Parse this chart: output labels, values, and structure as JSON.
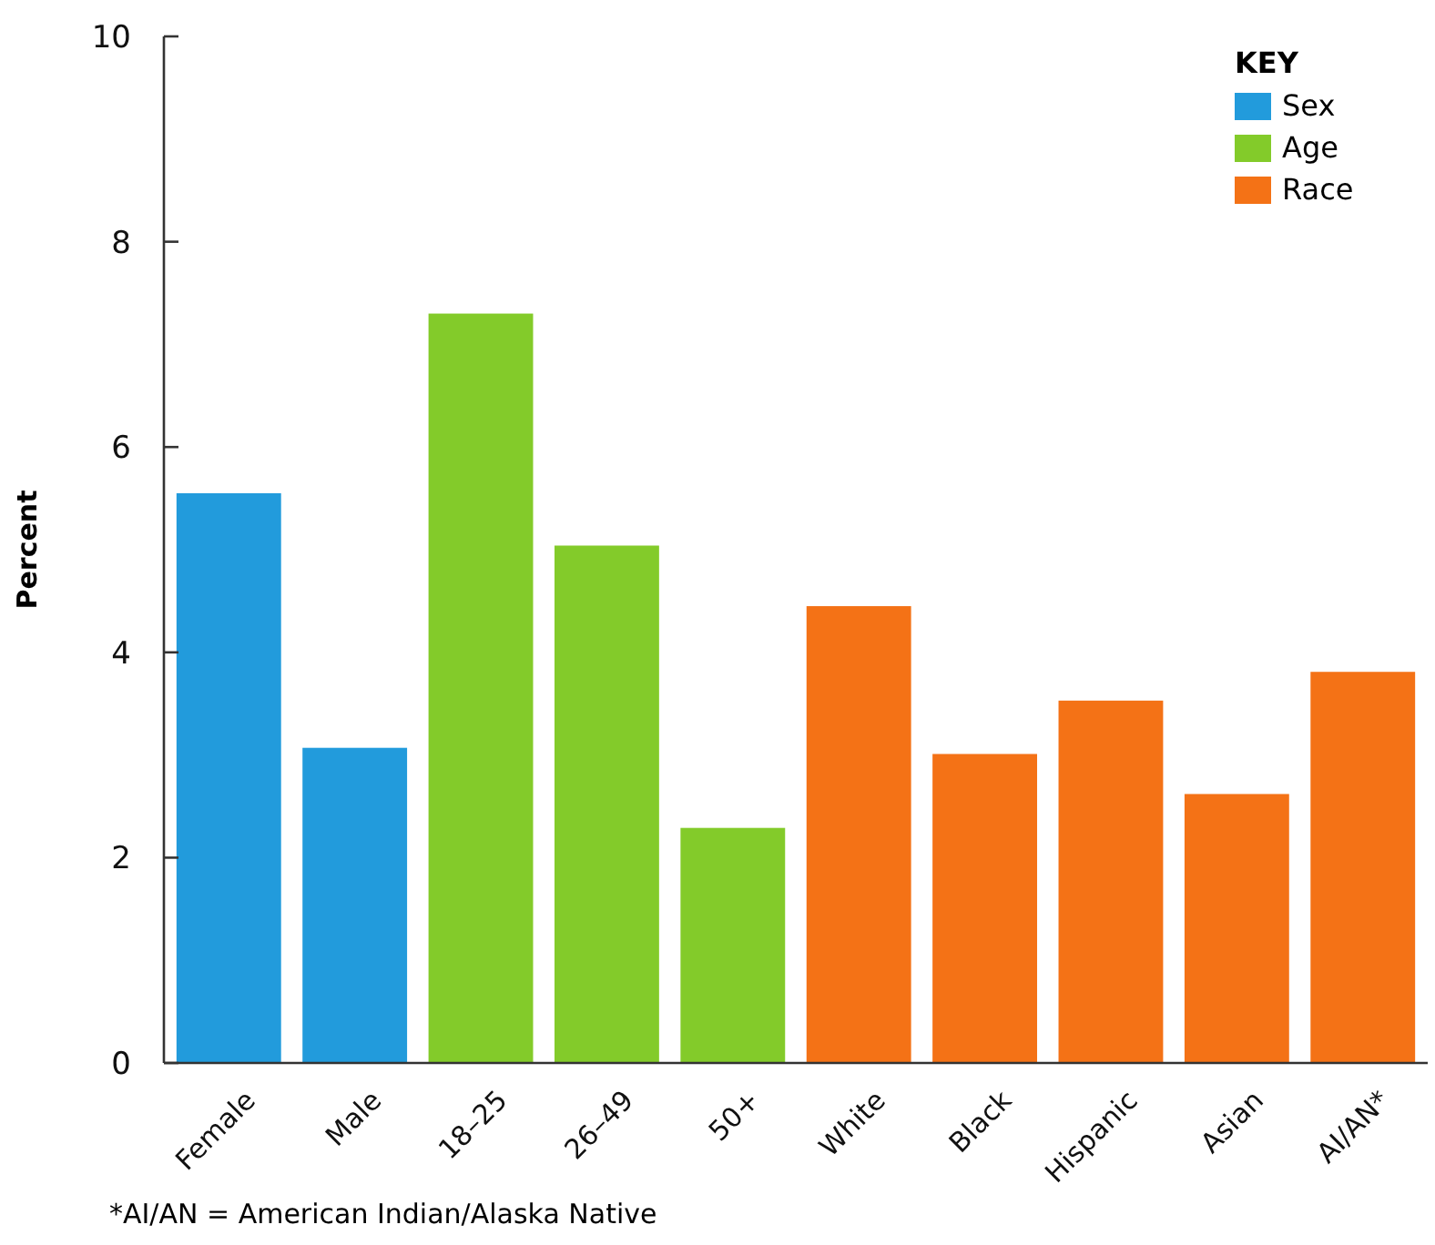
{
  "chart_data": {
    "type": "bar",
    "ylabel": "Percent",
    "categories": [
      "Female",
      "Male",
      "18–25",
      "26–49",
      "50+",
      "White",
      "Black",
      "Hispanic",
      "Asian",
      "AI/AN*"
    ],
    "series": [
      {
        "name": "Sex",
        "color": "#229bdc",
        "values": [
          5.55,
          3.07,
          null,
          null,
          null,
          null,
          null,
          null,
          null,
          null
        ]
      },
      {
        "name": "Age",
        "color": "#83cb2a",
        "values": [
          null,
          null,
          7.3,
          5.04,
          2.29,
          null,
          null,
          null,
          null,
          null
        ]
      },
      {
        "name": "Race",
        "color": "#f47216",
        "values": [
          null,
          null,
          null,
          null,
          null,
          4.45,
          3.01,
          3.53,
          2.62,
          3.81
        ]
      }
    ],
    "ylim": [
      0,
      10
    ],
    "yticks": [
      0,
      2,
      4,
      6,
      8,
      10
    ],
    "grid": false,
    "legend": "top right",
    "legend_title": "KEY",
    "annotations": [
      "*AI/AN = American Indian/Alaska Native"
    ]
  }
}
